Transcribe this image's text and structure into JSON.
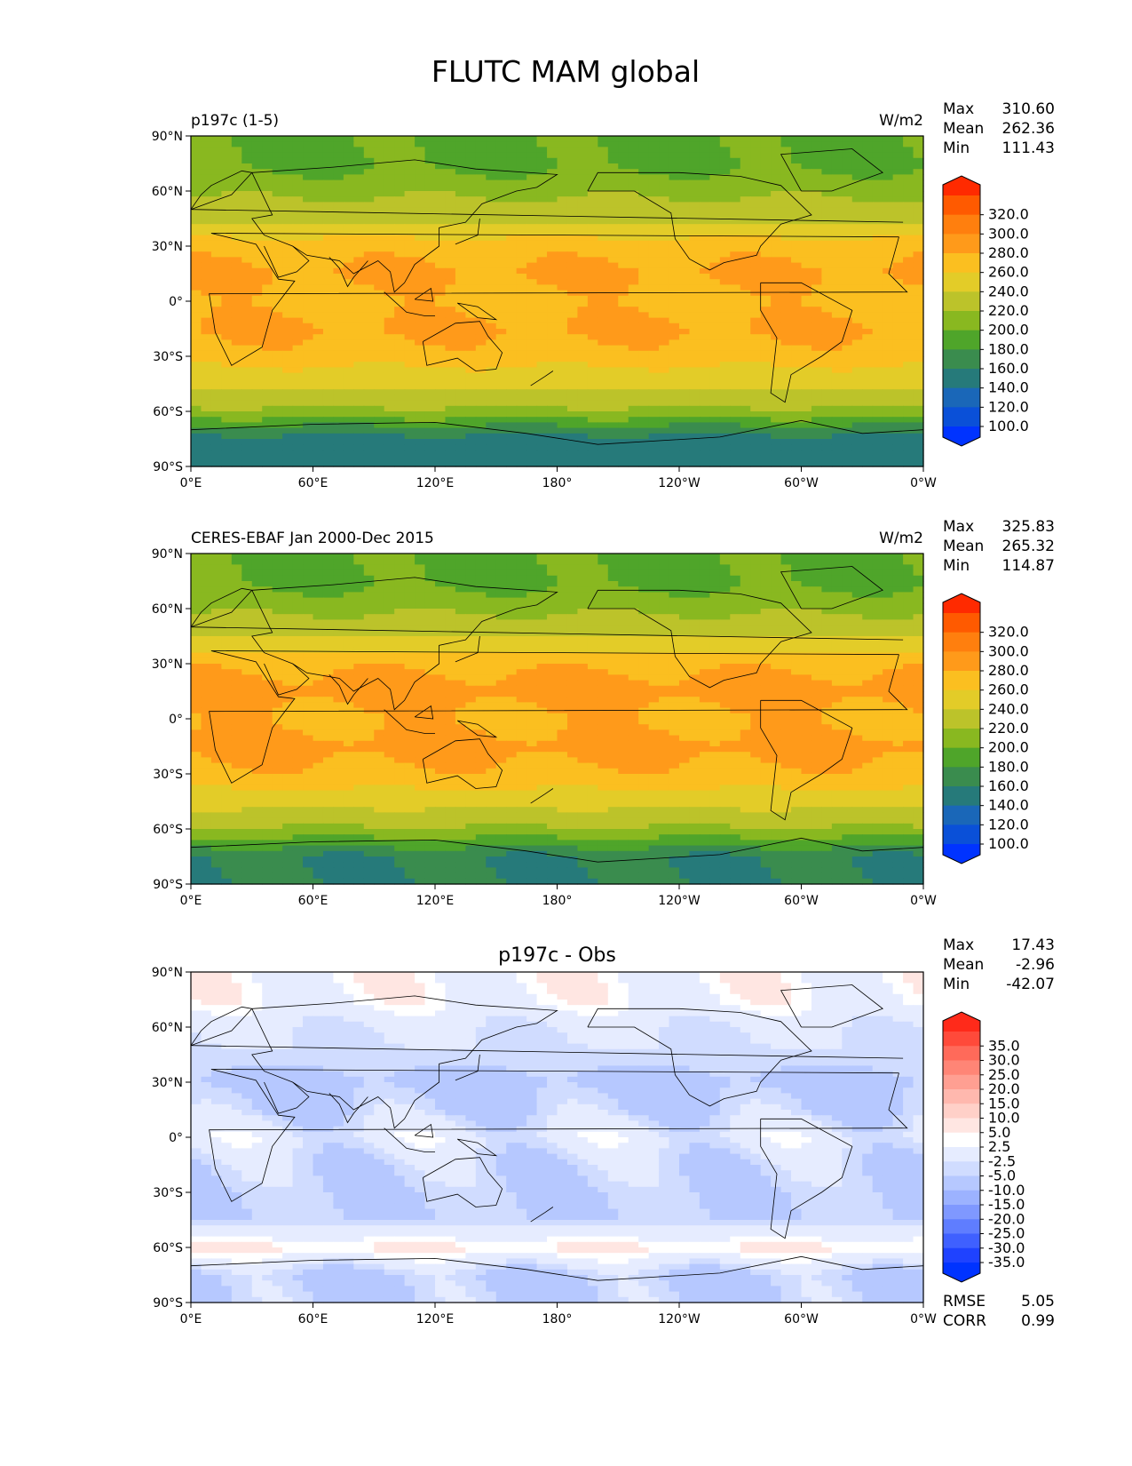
{
  "page_title": "FLUTC MAM global",
  "lat_ticks": [
    "90°N",
    "60°N",
    "30°N",
    "0°",
    "30°S",
    "60°S",
    "90°S"
  ],
  "lon_ticks": [
    "0°E",
    "60°E",
    "120°E",
    "180°",
    "120°W",
    "60°W",
    "0°W"
  ],
  "panels": [
    {
      "left_label": "p197c (1-5)",
      "center_title": "",
      "units": "W/m2",
      "stats": [
        {
          "label": "Max",
          "value": "310.60"
        },
        {
          "label": "Mean",
          "value": "262.36"
        },
        {
          "label": "Min",
          "value": "111.43"
        }
      ],
      "colorbar": {
        "labels": [
          "320.0",
          "300.0",
          "280.0",
          "260.0",
          "240.0",
          "220.0",
          "200.0",
          "180.0",
          "160.0",
          "140.0",
          "120.0",
          "100.0"
        ],
        "colors": [
          "#ff2a00",
          "#ff5a00",
          "#ff7f0e",
          "#ff9a1a",
          "#fbbf20",
          "#e3cc28",
          "#bcc32a",
          "#89b820",
          "#4fa52a",
          "#3a8c4e",
          "#267a7a",
          "#1a67b8",
          "#0a50d8",
          "#0033ff"
        ]
      },
      "footer_stats": []
    },
    {
      "left_label": "CERES-EBAF Jan 2000-Dec 2015",
      "center_title": "",
      "units": "W/m2",
      "stats": [
        {
          "label": "Max",
          "value": "325.83"
        },
        {
          "label": "Mean",
          "value": "265.32"
        },
        {
          "label": "Min",
          "value": "114.87"
        }
      ],
      "colorbar": {
        "labels": [
          "320.0",
          "300.0",
          "280.0",
          "260.0",
          "240.0",
          "220.0",
          "200.0",
          "180.0",
          "160.0",
          "140.0",
          "120.0",
          "100.0"
        ],
        "colors": [
          "#ff2a00",
          "#ff5a00",
          "#ff7f0e",
          "#ff9a1a",
          "#fbbf20",
          "#e3cc28",
          "#bcc32a",
          "#89b820",
          "#4fa52a",
          "#3a8c4e",
          "#267a7a",
          "#1a67b8",
          "#0a50d8",
          "#0033ff"
        ]
      },
      "footer_stats": []
    },
    {
      "left_label": "",
      "center_title": "p197c - Obs",
      "units": "",
      "stats": [
        {
          "label": "Max",
          "value": "17.43"
        },
        {
          "label": "Mean",
          "value": "-2.96"
        },
        {
          "label": "Min",
          "value": "-42.07"
        }
      ],
      "colorbar": {
        "labels": [
          "35.0",
          "30.0",
          "25.0",
          "20.0",
          "15.0",
          "10.0",
          "5.0",
          "2.5",
          "-2.5",
          "-5.0",
          "-10.0",
          "-15.0",
          "-20.0",
          "-25.0",
          "-30.0",
          "-35.0"
        ],
        "colors": [
          "#ff2a1a",
          "#ff4a3a",
          "#ff6a5a",
          "#ff8576",
          "#ff9f92",
          "#ffb8ae",
          "#ffd0c8",
          "#ffe6e2",
          "#ffffff",
          "#e6ecff",
          "#d0dcff",
          "#b6c8ff",
          "#9cb2ff",
          "#7f98ff",
          "#5f7dff",
          "#3f60ff",
          "#1f42ff",
          "#0033ff"
        ]
      },
      "footer_stats": [
        {
          "label": "RMSE",
          "value": "5.05"
        },
        {
          "label": "CORR",
          "value": "0.99"
        }
      ]
    }
  ],
  "chart_data": [
    {
      "type": "heatmap",
      "title": "p197c (1-5)",
      "units": "W/m2",
      "xlim": [
        0,
        360
      ],
      "ylim": [
        -90,
        90
      ],
      "lat": [
        -75,
        -60,
        -45,
        -30,
        -15,
        0,
        15,
        30,
        45,
        60,
        75
      ],
      "zonal_mean": [
        150,
        215,
        245,
        270,
        285,
        270,
        285,
        270,
        235,
        215,
        195
      ],
      "levels": [
        100,
        120,
        140,
        160,
        180,
        200,
        220,
        240,
        260,
        280,
        300,
        320
      ],
      "max": 310.6,
      "mean": 262.36,
      "min": 111.43
    },
    {
      "type": "heatmap",
      "title": "CERES-EBAF Jan 2000-Dec 2015",
      "units": "W/m2",
      "xlim": [
        0,
        360
      ],
      "ylim": [
        -90,
        90
      ],
      "lat": [
        -75,
        -60,
        -45,
        -30,
        -15,
        0,
        15,
        30,
        45,
        60,
        75
      ],
      "zonal_mean": [
        160,
        218,
        248,
        275,
        290,
        275,
        292,
        275,
        238,
        215,
        195
      ],
      "levels": [
        100,
        120,
        140,
        160,
        180,
        200,
        220,
        240,
        260,
        280,
        300,
        320
      ],
      "max": 325.83,
      "mean": 265.32,
      "min": 114.87
    },
    {
      "type": "heatmap",
      "title": "p197c - Obs",
      "xlim": [
        0,
        360
      ],
      "ylim": [
        -90,
        90
      ],
      "lat": [
        -75,
        -60,
        -45,
        -30,
        -15,
        0,
        15,
        30,
        45,
        60,
        75
      ],
      "zonal_mean": [
        -6,
        6,
        -5,
        -5,
        -4,
        0,
        -5,
        -7,
        -3,
        -2,
        3
      ],
      "levels": [
        -35,
        -30,
        -25,
        -20,
        -15,
        -10,
        -5,
        -2.5,
        2.5,
        5,
        10,
        15,
        20,
        25,
        30,
        35
      ],
      "max": 17.43,
      "mean": -2.96,
      "min": -42.07,
      "rmse": 5.05,
      "corr": 0.99
    }
  ]
}
